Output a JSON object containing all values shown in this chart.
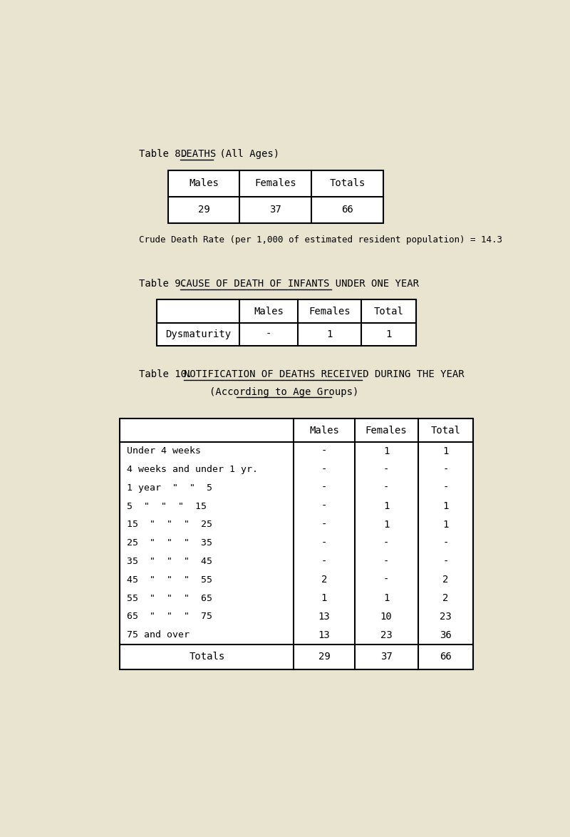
{
  "page_bg": "#e8e4d0",
  "table8": {
    "title_prefix": "Table 8.",
    "title_underline": "DEATHS",
    "title_suffix": " (All Ages)",
    "headers": [
      "Males",
      "Females",
      "Totals"
    ],
    "values": [
      "29",
      "37",
      "66"
    ],
    "note": "Crude Death Rate (per 1,000 of estimated resident population) = 14.3"
  },
  "table9": {
    "title_prefix": "Table 9.",
    "title_underline": "CAUSE OF DEATH OF INFANTS UNDER ONE YEAR",
    "headers": [
      "",
      "Males",
      "Females",
      "Total"
    ],
    "rows": [
      [
        "Dysmaturity",
        "-",
        "1",
        "1"
      ]
    ]
  },
  "table10": {
    "title_prefix": "Table 10.",
    "title_underline": "NOTIFICATION OF DEATHS RECEIVED DURING THE YEAR",
    "title_line2": "(According to Age Groups)",
    "headers": [
      "Males",
      "Females",
      "Total"
    ],
    "rows": [
      [
        "Under 4 weeks",
        "-",
        "1",
        "1"
      ],
      [
        "4 weeks and under 1 yr.",
        "-",
        "-",
        "-"
      ],
      [
        "1 year  \"  \"  5",
        "-",
        "-",
        "-"
      ],
      [
        "5  \"  \"  \"  15",
        "-",
        "1",
        "1"
      ],
      [
        "15  \"  \"  \"  25",
        "-",
        "1",
        "1"
      ],
      [
        "25  \"  \"  \"  35",
        "-",
        "-",
        "-"
      ],
      [
        "35  \"  \"  \"  45",
        "-",
        "-",
        "-"
      ],
      [
        "45  \"  \"  \"  55",
        "2",
        "-",
        "2"
      ],
      [
        "55  \"  \"  \"  65",
        "1",
        "1",
        "2"
      ],
      [
        "65  \"  \"  \"  75",
        "13",
        "10",
        "23"
      ],
      [
        "75 and over",
        "13",
        "23",
        "36"
      ]
    ],
    "totals_row": [
      "Totals",
      "29",
      "37",
      "66"
    ]
  }
}
